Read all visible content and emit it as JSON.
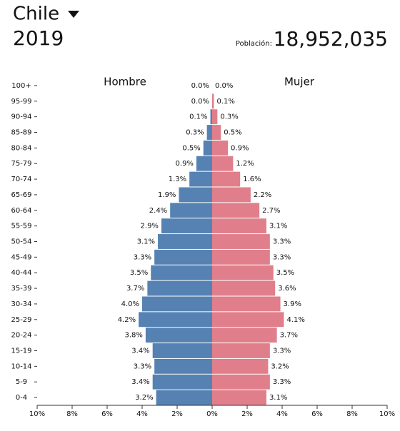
{
  "chart_data": {
    "type": "pyramid",
    "title": "Chile",
    "subtitle": "2019",
    "population_label": "Población:",
    "population": "18,952,035",
    "categories": [
      "100+",
      "95-99",
      "90-94",
      "85-89",
      "80-84",
      "75-79",
      "70-74",
      "65-69",
      "60-64",
      "55-59",
      "50-54",
      "45-49",
      "40-44",
      "35-39",
      "30-34",
      "25-29",
      "20-24",
      "15-19",
      "10-14",
      "5-9",
      "0-4"
    ],
    "series": [
      {
        "name": "Hombre",
        "color": "#5582b2",
        "side": "left",
        "values": [
          0.0,
          0.0,
          0.1,
          0.3,
          0.5,
          0.9,
          1.3,
          1.9,
          2.4,
          2.9,
          3.1,
          3.3,
          3.5,
          3.7,
          4.0,
          4.2,
          3.8,
          3.4,
          3.3,
          3.4,
          3.2
        ],
        "value_labels": [
          "0.0%",
          "0.0%",
          "0.1%",
          "0.3%",
          "0.5%",
          "0.9%",
          "1.3%",
          "1.9%",
          "2.4%",
          "2.9%",
          "3.1%",
          "3.3%",
          "3.5%",
          "3.7%",
          "4.0%",
          "4.2%",
          "3.8%",
          "3.4%",
          "3.3%",
          "3.4%",
          "3.2%"
        ]
      },
      {
        "name": "Mujer",
        "color": "#e07f8b",
        "side": "right",
        "values": [
          0.0,
          0.1,
          0.3,
          0.5,
          0.9,
          1.2,
          1.6,
          2.2,
          2.7,
          3.1,
          3.3,
          3.3,
          3.5,
          3.6,
          3.9,
          4.1,
          3.7,
          3.3,
          3.2,
          3.3,
          3.1
        ],
        "value_labels": [
          "0.0%",
          "0.1%",
          "0.3%",
          "0.5%",
          "0.9%",
          "1.2%",
          "1.6%",
          "2.2%",
          "2.7%",
          "3.1%",
          "3.3%",
          "3.3%",
          "3.5%",
          "3.6%",
          "3.9%",
          "4.1%",
          "3.7%",
          "3.3%",
          "3.2%",
          "3.3%",
          "3.1%"
        ]
      }
    ],
    "xlim": [
      -10,
      10
    ],
    "xticks": [
      {
        "value": -10,
        "label": "10%"
      },
      {
        "value": -8,
        "label": "8%"
      },
      {
        "value": -6,
        "label": "6%"
      },
      {
        "value": -4,
        "label": "4%"
      },
      {
        "value": -2,
        "label": "2%"
      },
      {
        "value": 0,
        "label": "0%"
      },
      {
        "value": 2,
        "label": "2%"
      },
      {
        "value": 4,
        "label": "4%"
      },
      {
        "value": 6,
        "label": "6%"
      },
      {
        "value": 8,
        "label": "8%"
      },
      {
        "value": 10,
        "label": "10%"
      }
    ]
  }
}
